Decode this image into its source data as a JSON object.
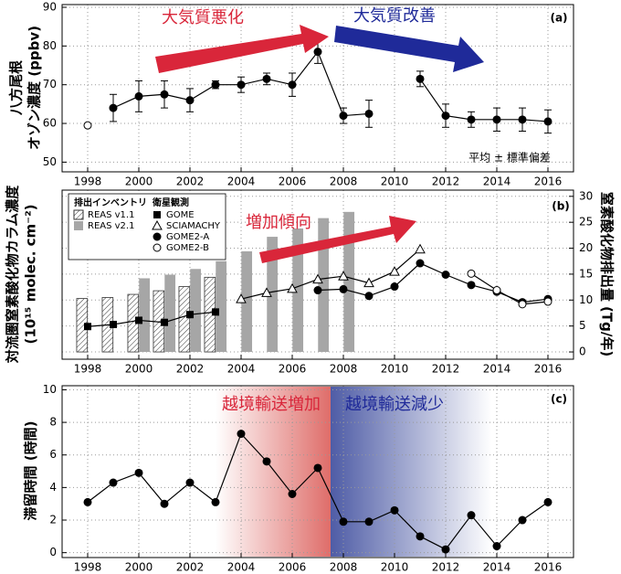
{
  "chart_data": [
    {
      "type": "line",
      "panel_label": "(a)",
      "ylabel": [
        "八方尾根",
        "オゾン濃度 (ppbv)"
      ],
      "annotations": [
        {
          "text": "大気質悪化",
          "color": "#d9263a"
        },
        {
          "text": "大気質改善",
          "color": "#1f2a99"
        }
      ],
      "note": "平均 ± 標準偏差",
      "x": [
        1998,
        1999,
        2000,
        2001,
        2002,
        2003,
        2004,
        2005,
        2006,
        2007,
        2008,
        2009,
        2010,
        2011,
        2012,
        2013,
        2014,
        2015,
        2016
      ],
      "xlim": [
        1997,
        2017
      ],
      "xticks": [
        1998,
        2000,
        2002,
        2004,
        2006,
        2008,
        2010,
        2012,
        2014,
        2016
      ],
      "ylim": [
        47.5,
        90.7
      ],
      "yticks": [
        50,
        60,
        70,
        80,
        90
      ],
      "grid": true,
      "series": [
        {
          "color": "#000000",
          "marker": "circle",
          "line": true,
          "values": [
            null,
            64,
            67,
            67.5,
            66,
            70,
            70,
            71.5,
            70,
            78.5,
            62,
            62.5,
            null,
            71.5,
            62,
            61,
            61,
            61,
            60.5
          ],
          "errors": [
            null,
            3.5,
            4,
            3.5,
            3,
            1,
            2,
            1.5,
            3,
            3,
            2,
            3.5,
            null,
            2,
            3,
            2,
            3,
            3,
            3
          ]
        },
        {
          "color": "#000000",
          "marker": "circle-open",
          "line": false,
          "values": [
            59.5,
            null,
            null,
            null,
            null,
            null,
            null,
            null,
            null,
            null,
            null,
            null,
            null,
            null,
            null,
            null,
            null,
            null,
            null
          ]
        }
      ]
    },
    {
      "type": "combo",
      "panel_label": "(b)",
      "ylabel": [
        "対流圏窒素酸化物カラム濃度",
        "(10¹⁵ molec. cm⁻²)"
      ],
      "y2label": "窒素酸化物排出量 (Tg/年)",
      "annotations": [
        {
          "text": "増加傾向",
          "color": "#d9263a"
        }
      ],
      "legend_titles": [
        "排出インベントリ",
        "衛星観測"
      ],
      "x": [
        1998,
        1999,
        2000,
        2001,
        2002,
        2003,
        2004,
        2005,
        2006,
        2007,
        2008,
        2009,
        2010,
        2011,
        2012,
        2013,
        2014,
        2015,
        2016
      ],
      "xlim": [
        1997,
        2017
      ],
      "xticks": [
        1998,
        2000,
        2002,
        2004,
        2006,
        2008,
        2010,
        2012,
        2014,
        2016
      ],
      "y2lim": [
        -1.4,
        31.2
      ],
      "y2ticks": [
        0,
        5,
        10,
        15,
        20,
        25,
        30
      ],
      "grid": true,
      "series": [
        {
          "name": "REAS v1.1",
          "kind": "bar",
          "fill": "hatch",
          "color": "#333333",
          "group": 0,
          "axis": "y2",
          "offset": -0.22,
          "values": [
            10.3,
            10.5,
            11.1,
            11.8,
            12.6,
            14.4,
            null,
            null,
            null,
            null,
            null,
            null,
            null,
            null,
            null,
            null,
            null,
            null,
            null
          ]
        },
        {
          "name": "REAS v2.1",
          "kind": "bar",
          "fill": "solid",
          "color": "#a6a6a6",
          "group": 0,
          "axis": "y2",
          "offset": 0.22,
          "values": [
            null,
            null,
            14.2,
            14.9,
            16.0,
            17.5,
            19.4,
            22.2,
            23.8,
            25.8,
            27.0,
            null,
            null,
            null,
            null,
            null,
            null,
            null,
            null
          ]
        },
        {
          "name": "GOME",
          "kind": "line",
          "marker": "square",
          "color": "#000000",
          "group": 1,
          "axis": "y2",
          "values": [
            4.9,
            5.3,
            6.1,
            5.7,
            7.2,
            7.7,
            null,
            null,
            null,
            null,
            null,
            null,
            null,
            null,
            null,
            null,
            null,
            null,
            null
          ]
        },
        {
          "name": "SCIAMACHY",
          "kind": "line",
          "marker": "triangle-open",
          "color": "#000000",
          "group": 1,
          "axis": "y2",
          "values": [
            null,
            null,
            null,
            null,
            null,
            null,
            10.2,
            11.4,
            12.2,
            14.0,
            14.6,
            13.3,
            15.5,
            19.8,
            null,
            null,
            null,
            null,
            null
          ]
        },
        {
          "name": "GOME2-A",
          "kind": "line",
          "marker": "circle",
          "color": "#000000",
          "group": 1,
          "axis": "y2",
          "values": [
            null,
            null,
            null,
            null,
            null,
            null,
            null,
            null,
            null,
            11.9,
            12.1,
            10.8,
            12.6,
            17.1,
            14.9,
            12.9,
            11.6,
            9.6,
            10.2
          ]
        },
        {
          "name": "GOME2-B",
          "kind": "line",
          "marker": "circle-open",
          "color": "#000000",
          "group": 1,
          "axis": "y2",
          "values": [
            null,
            null,
            null,
            null,
            null,
            null,
            null,
            null,
            null,
            null,
            null,
            null,
            null,
            null,
            null,
            15.1,
            11.9,
            9.2,
            9.7
          ]
        }
      ]
    },
    {
      "type": "line",
      "panel_label": "(c)",
      "ylabel": [
        "滞留時間 (時間)"
      ],
      "annotations": [
        {
          "text": "越境輸送増加",
          "color": "#d9263a"
        },
        {
          "text": "越境輸送減少",
          "color": "#1f2a99"
        }
      ],
      "x": [
        1998,
        1999,
        2000,
        2001,
        2002,
        2003,
        2004,
        2005,
        2006,
        2007,
        2008,
        2009,
        2010,
        2011,
        2012,
        2013,
        2014,
        2015,
        2016
      ],
      "xlim": [
        1997,
        2017
      ],
      "xticks": [
        1998,
        2000,
        2002,
        2004,
        2006,
        2008,
        2010,
        2012,
        2014,
        2016
      ],
      "ylim": [
        -0.3,
        10.25
      ],
      "yticks": [
        0,
        2,
        4,
        6,
        8,
        10
      ],
      "grid": true,
      "series": [
        {
          "color": "#000000",
          "marker": "circle",
          "line": true,
          "values": [
            3.1,
            4.3,
            4.9,
            3.0,
            4.3,
            3.1,
            7.3,
            5.6,
            3.6,
            5.2,
            1.9,
            1.9,
            2.6,
            1.0,
            0.2,
            2.3,
            0.4,
            2.0,
            3.1
          ]
        }
      ]
    }
  ]
}
